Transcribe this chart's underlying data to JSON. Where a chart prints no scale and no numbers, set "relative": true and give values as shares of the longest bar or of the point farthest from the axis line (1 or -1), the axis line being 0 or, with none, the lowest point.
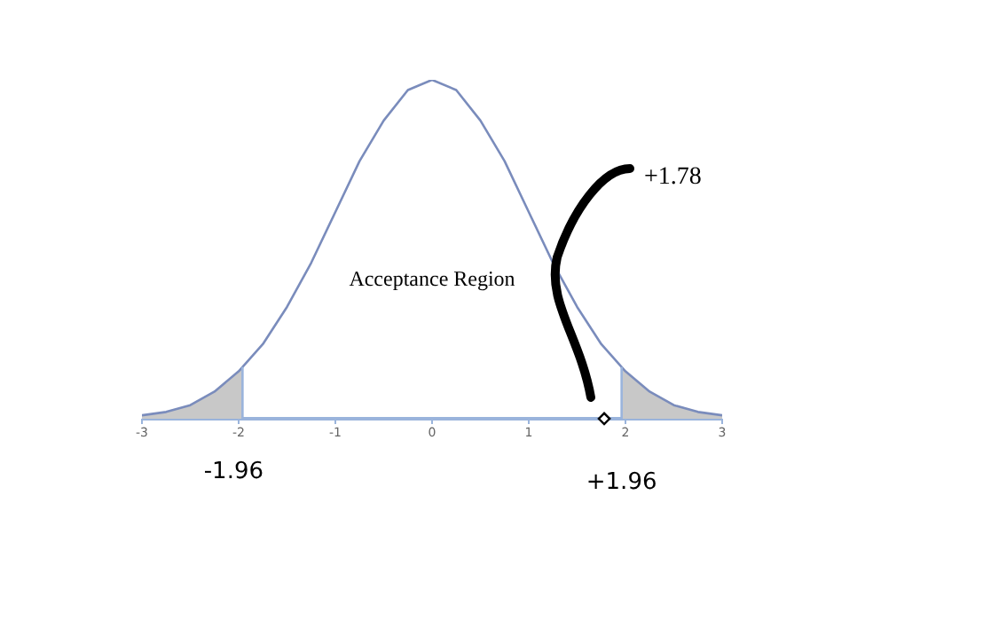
{
  "chart_data": {
    "type": "line",
    "relative": true,
    "x": [
      -3,
      -2.75,
      -2.5,
      -2.25,
      -2,
      -1.75,
      -1.5,
      -1.25,
      -1,
      -0.75,
      -0.5,
      -0.25,
      0,
      0.25,
      0.5,
      0.75,
      1,
      1.25,
      1.5,
      1.75,
      2,
      2.25,
      2.5,
      2.75,
      3
    ],
    "series": [
      {
        "color": "#7a8cbc",
        "values": [
          0.01,
          0.02,
          0.04,
          0.08,
          0.14,
          0.22,
          0.33,
          0.46,
          0.61,
          0.76,
          0.88,
          0.97,
          1,
          0.97,
          0.88,
          0.76,
          0.61,
          0.46,
          0.33,
          0.22,
          0.14,
          0.08,
          0.04,
          0.02,
          0.01
        ]
      },
      {
        "type": "area",
        "color": "#c8c8c8",
        "x": [
          -3,
          -2.75,
          -2.5,
          -2.25,
          -2,
          -1.96
        ],
        "values": [
          0.01,
          0.02,
          0.04,
          0.08,
          0.14,
          0.15
        ]
      },
      {
        "type": "area",
        "color": "#c8c8c8",
        "x": [
          1.96,
          2,
          2.25,
          2.5,
          2.75,
          3
        ],
        "values": [
          0.15,
          0.14,
          0.08,
          0.04,
          0.02,
          0.01
        ]
      },
      {
        "type": "scatter",
        "color": "#ffffff",
        "marker": "diamond",
        "x": [
          1.78
        ],
        "values": [
          0
        ]
      }
    ],
    "xlim": [
      -3,
      3
    ],
    "xticks": [
      -3,
      -2,
      -1,
      0,
      1,
      2,
      3
    ],
    "ref_lines": [
      {
        "axis": "x",
        "value": -1.96,
        "label": "-1.96",
        "color": "#9ab4dc"
      },
      {
        "axis": "x",
        "value": 1.96,
        "label": "+1.96",
        "color": "#9ab4dc"
      }
    ],
    "annotations": [
      "Acceptance Region",
      "+1.78"
    ],
    "grid": false,
    "legend": false,
    "marker": "none",
    "line_style": "solid"
  }
}
